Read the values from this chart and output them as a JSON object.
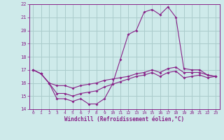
{
  "xlabel": "Windchill (Refroidissement éolien,°C)",
  "background_color": "#ceeaea",
  "grid_color": "#aacccc",
  "line_color": "#882288",
  "xlim": [
    -0.5,
    23.5
  ],
  "ylim": [
    14,
    22
  ],
  "yticks": [
    14,
    15,
    16,
    17,
    18,
    19,
    20,
    21,
    22
  ],
  "xticks": [
    0,
    1,
    2,
    3,
    4,
    5,
    6,
    7,
    8,
    9,
    10,
    11,
    12,
    13,
    14,
    15,
    16,
    17,
    18,
    19,
    20,
    21,
    22,
    23
  ],
  "series": {
    "temp": {
      "x": [
        0,
        1,
        2,
        3,
        4,
        5,
        6,
        7,
        8,
        9,
        10,
        11,
        12,
        13,
        14,
        15,
        16,
        17,
        18,
        19,
        20,
        21,
        22,
        23
      ],
      "y": [
        17.0,
        16.7,
        16.0,
        14.8,
        14.8,
        14.6,
        14.8,
        14.4,
        14.4,
        14.8,
        15.9,
        17.8,
        19.7,
        20.0,
        21.4,
        21.6,
        21.2,
        21.8,
        21.0,
        17.1,
        17.0,
        17.0,
        16.6,
        16.5
      ]
    },
    "windchill": {
      "x": [
        0,
        1,
        2,
        3,
        4,
        5,
        6,
        7,
        8,
        9,
        10,
        11,
        12,
        13,
        14,
        15,
        16,
        17,
        18,
        19,
        20,
        21,
        22,
        23
      ],
      "y": [
        17.0,
        16.7,
        16.0,
        15.8,
        15.8,
        15.6,
        15.8,
        15.9,
        16.0,
        16.2,
        16.3,
        16.4,
        16.5,
        16.7,
        16.8,
        17.0,
        16.8,
        17.1,
        17.2,
        16.8,
        16.8,
        16.8,
        16.6,
        16.5
      ]
    },
    "wind": {
      "x": [
        0,
        1,
        2,
        3,
        4,
        5,
        6,
        7,
        8,
        9,
        10,
        11,
        12,
        13,
        14,
        15,
        16,
        17,
        18,
        19,
        20,
        21,
        22,
        23
      ],
      "y": [
        17.0,
        16.7,
        16.0,
        15.2,
        15.2,
        15.0,
        15.2,
        15.3,
        15.4,
        15.7,
        15.9,
        16.1,
        16.3,
        16.5,
        16.6,
        16.8,
        16.5,
        16.8,
        16.9,
        16.4,
        16.5,
        16.6,
        16.4,
        16.5
      ]
    }
  }
}
